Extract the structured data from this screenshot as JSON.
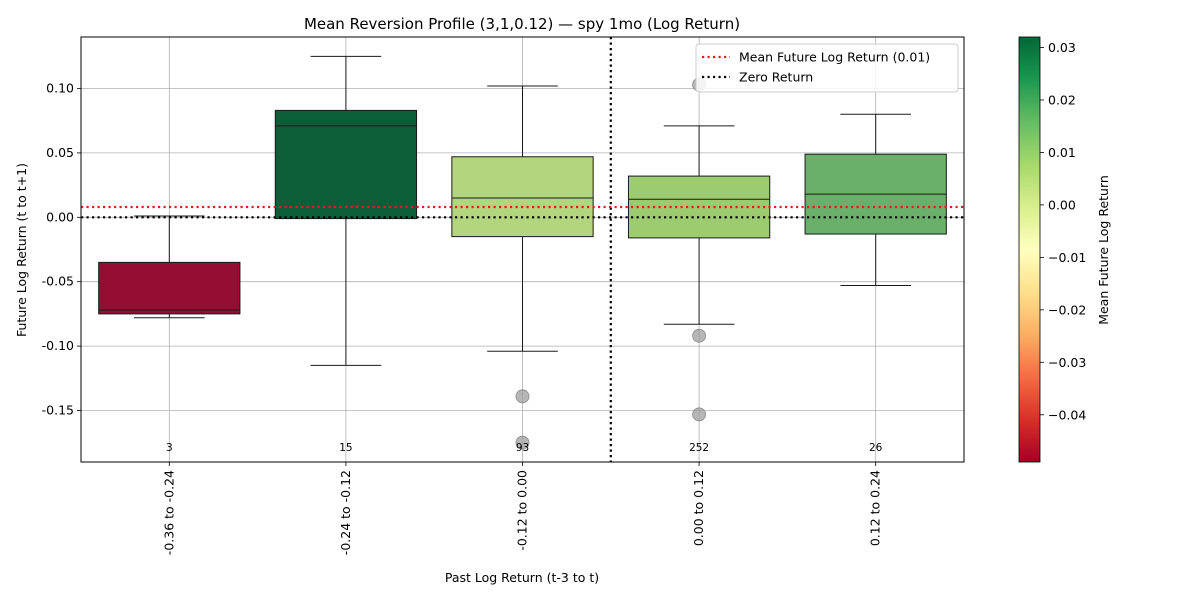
{
  "chart_data": {
    "type": "box",
    "title": "Mean Reversion Profile (3,1,0.12) — spy 1mo (Log Return)",
    "xlabel": "Past Log Return (t-3 to t)",
    "ylabel": "Future Log Return (t to t+1)",
    "ylim": [
      -0.19,
      0.14
    ],
    "yticks": [
      0.1,
      0.05,
      0.0,
      -0.05,
      -0.1,
      -0.15
    ],
    "ytick_labels": [
      "0.10",
      "0.05",
      "0.00",
      "-0.05",
      "-0.10",
      "-0.15"
    ],
    "categories": [
      "-0.36 to -0.24",
      "-0.24 to -0.12",
      "-0.12 to 0.00",
      "0.00 to 0.12",
      "0.12 to 0.24"
    ],
    "grid": true,
    "boxes": [
      {
        "whisker_low": -0.078,
        "q1": -0.075,
        "median": -0.072,
        "q3": -0.035,
        "whisker_high": 0.001,
        "outliers": [],
        "count": "3",
        "mean": -0.049,
        "color": "#940e33"
      },
      {
        "whisker_low": -0.115,
        "q1": -0.001,
        "median": 0.071,
        "q3": 0.083,
        "whisker_high": 0.125,
        "outliers": [],
        "count": "15",
        "mean": 0.032,
        "color": "#0b5e38"
      },
      {
        "whisker_low": -0.104,
        "q1": -0.015,
        "median": 0.015,
        "q3": 0.047,
        "whisker_high": 0.102,
        "outliers": [
          -0.139,
          -0.175
        ],
        "count": "93",
        "mean": 0.009,
        "color": "#b3d57e"
      },
      {
        "whisker_low": -0.083,
        "q1": -0.016,
        "median": 0.014,
        "q3": 0.032,
        "whisker_high": 0.071,
        "outliers": [
          0.103,
          -0.092,
          -0.153
        ],
        "count": "252",
        "mean": 0.011,
        "color": "#9dcb6f"
      },
      {
        "whisker_low": -0.053,
        "q1": -0.013,
        "median": 0.018,
        "q3": 0.049,
        "whisker_high": 0.08,
        "outliers": [],
        "count": "26",
        "mean": 0.019,
        "color": "#6bb06a"
      }
    ],
    "reference_lines": {
      "mean_future": {
        "value": 0.008,
        "label": "Mean Future Log Return (0.01)",
        "color": "#e41a1c"
      },
      "zero_return": {
        "value": 0.0,
        "label": "Zero Return",
        "color": "#000000"
      },
      "vertical_split_position": 2.5
    },
    "legend_placement": "top-right",
    "colorbar": {
      "label": "Mean Future Log Return",
      "range": [
        -0.049,
        0.032
      ],
      "ticks": [
        0.03,
        0.02,
        0.01,
        0.0,
        -0.01,
        -0.02,
        -0.03,
        -0.04
      ],
      "tick_labels": [
        "0.03",
        "0.02",
        "0.01",
        "0.00",
        "−0.01",
        "−0.02",
        "−0.03",
        "−0.04"
      ],
      "colormap": "RdYlGn",
      "colormap_stops": [
        "#a50026",
        "#d73027",
        "#f46d43",
        "#fdae61",
        "#fee08b",
        "#ffffbf",
        "#d9ef8b",
        "#a6d96a",
        "#66bd63",
        "#1a9850",
        "#006837"
      ]
    }
  }
}
